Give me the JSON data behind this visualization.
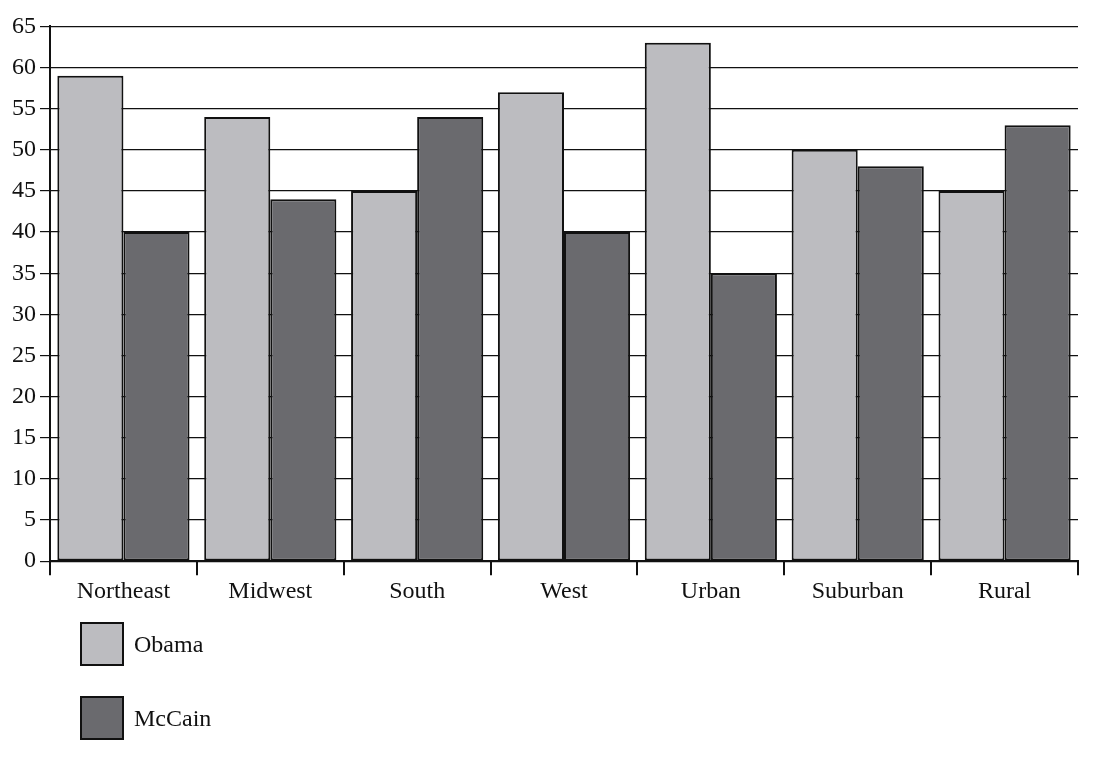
{
  "chart_data": {
    "type": "bar",
    "categories": [
      "Northeast",
      "Midwest",
      "South",
      "West",
      "Urban",
      "Suburban",
      "Rural"
    ],
    "series": [
      {
        "name": "Obama",
        "color": "#bcbcc0",
        "values": [
          59,
          54,
          45,
          57,
          63,
          50,
          45
        ]
      },
      {
        "name": "McCain",
        "color": "#6a6a6e",
        "values": [
          40,
          44,
          54,
          40,
          35,
          48,
          53
        ]
      }
    ],
    "ylim": [
      0,
      65
    ],
    "yticks": [
      0,
      5,
      10,
      15,
      20,
      25,
      30,
      35,
      40,
      45,
      50,
      55,
      60,
      65
    ],
    "grid": "y",
    "legend": "bottom left"
  }
}
